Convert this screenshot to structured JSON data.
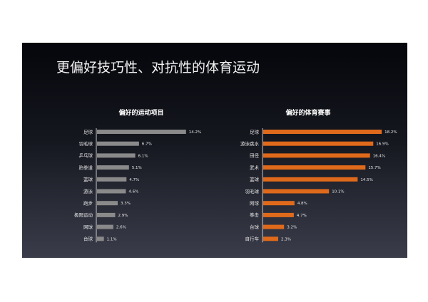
{
  "slide_title": "更偏好技巧性、对抗性的体育运动",
  "colors": {
    "left_bar": "#8a8a8a",
    "right_bar": "#e06a1b",
    "axis": "#f0f0f0"
  },
  "chart_data": [
    {
      "type": "bar",
      "orientation": "horizontal",
      "title": "偏好的运动项目",
      "categories": [
        "足球",
        "羽毛球",
        "乒乓球",
        "跆拳道",
        "篮球",
        "游泳",
        "跑步",
        "极限运动",
        "网球",
        "台球"
      ],
      "values": [
        14.2,
        6.7,
        6.1,
        5.1,
        4.7,
        4.6,
        3.3,
        2.9,
        2.6,
        1.1
      ],
      "value_labels": [
        "14.2%",
        "6.7%",
        "6.1%",
        "5.1%",
        "4.7%",
        "4.6%",
        "3.3%",
        "2.9%",
        "2.6%",
        "1.1%"
      ],
      "unit": "%",
      "xlim": [
        0,
        16.5
      ],
      "grid": false,
      "color": "#8a8a8a"
    },
    {
      "type": "bar",
      "orientation": "horizontal",
      "title": "偏好的体育赛事",
      "categories": [
        "足球",
        "游泳跳水",
        "田径",
        "武术",
        "篮球",
        "羽毛球",
        "网球",
        "拳击",
        "台球",
        "自行车"
      ],
      "values": [
        18.2,
        16.9,
        16.4,
        15.7,
        14.5,
        10.1,
        4.8,
        4.7,
        3.2,
        2.3
      ],
      "value_labels": [
        "18.2%",
        "16.9%",
        "16.4%",
        "15.7%",
        "14.5%",
        "10.1%",
        "4.8%",
        "4.7%",
        "3.2%",
        "2.3%"
      ],
      "unit": "%",
      "xlim": [
        0,
        19.5
      ],
      "grid": false,
      "color": "#e06a1b"
    }
  ]
}
